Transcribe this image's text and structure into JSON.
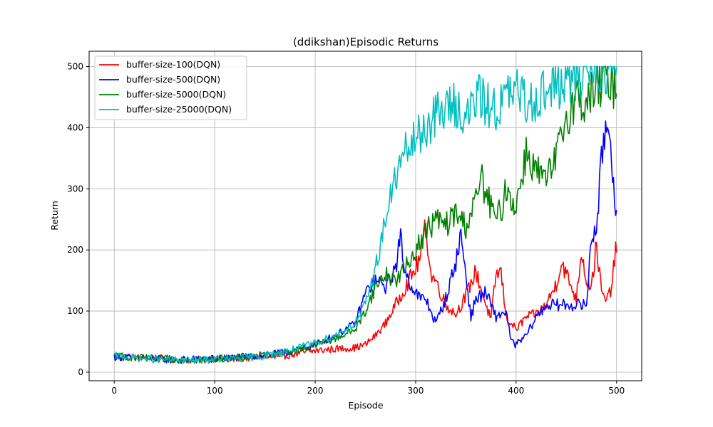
{
  "chart_data": {
    "type": "line",
    "title": "(ddikshan)Episodic Returns",
    "xlabel": "Episode",
    "ylabel": "Return",
    "xlim": [
      -25,
      525
    ],
    "ylim": [
      -14,
      525
    ],
    "xticks": [
      0,
      100,
      200,
      300,
      400,
      500
    ],
    "yticks": [
      0,
      100,
      200,
      300,
      400,
      500
    ],
    "grid": true,
    "legend_position": "top-left",
    "series": [
      {
        "name": "buffer-size-100(DQN)",
        "color": "#ff0000",
        "points": [
          [
            0,
            28
          ],
          [
            20,
            24
          ],
          [
            40,
            23
          ],
          [
            60,
            21
          ],
          [
            80,
            20
          ],
          [
            100,
            22
          ],
          [
            120,
            21
          ],
          [
            140,
            25
          ],
          [
            160,
            24
          ],
          [
            180,
            30
          ],
          [
            200,
            35
          ],
          [
            220,
            38
          ],
          [
            240,
            40
          ],
          [
            250,
            45
          ],
          [
            260,
            60
          ],
          [
            270,
            80
          ],
          [
            280,
            110
          ],
          [
            290,
            140
          ],
          [
            300,
            170
          ],
          [
            305,
            190
          ],
          [
            310,
            240
          ],
          [
            315,
            160
          ],
          [
            320,
            150
          ],
          [
            330,
            110
          ],
          [
            340,
            95
          ],
          [
            350,
            125
          ],
          [
            360,
            165
          ],
          [
            370,
            110
          ],
          [
            375,
            85
          ],
          [
            380,
            160
          ],
          [
            385,
            165
          ],
          [
            390,
            90
          ],
          [
            400,
            70
          ],
          [
            410,
            90
          ],
          [
            420,
            95
          ],
          [
            430,
            110
          ],
          [
            440,
            145
          ],
          [
            445,
            180
          ],
          [
            450,
            160
          ],
          [
            460,
            120
          ],
          [
            465,
            200
          ],
          [
            470,
            150
          ],
          [
            475,
            140
          ],
          [
            480,
            210
          ],
          [
            485,
            130
          ],
          [
            490,
            115
          ],
          [
            495,
            140
          ],
          [
            500,
            210
          ]
        ]
      },
      {
        "name": "buffer-size-500(DQN)",
        "color": "#0000ff",
        "points": [
          [
            0,
            25
          ],
          [
            20,
            24
          ],
          [
            40,
            22
          ],
          [
            60,
            20
          ],
          [
            80,
            21
          ],
          [
            100,
            22
          ],
          [
            120,
            24
          ],
          [
            140,
            26
          ],
          [
            160,
            30
          ],
          [
            180,
            35
          ],
          [
            200,
            45
          ],
          [
            220,
            60
          ],
          [
            240,
            80
          ],
          [
            250,
            130
          ],
          [
            260,
            150
          ],
          [
            270,
            140
          ],
          [
            280,
            170
          ],
          [
            285,
            220
          ],
          [
            290,
            160
          ],
          [
            300,
            130
          ],
          [
            305,
            120
          ],
          [
            310,
            120
          ],
          [
            320,
            80
          ],
          [
            330,
            120
          ],
          [
            340,
            180
          ],
          [
            345,
            225
          ],
          [
            350,
            160
          ],
          [
            355,
            90
          ],
          [
            360,
            120
          ],
          [
            370,
            130
          ],
          [
            380,
            90
          ],
          [
            390,
            100
          ],
          [
            395,
            50
          ],
          [
            400,
            45
          ],
          [
            410,
            60
          ],
          [
            420,
            90
          ],
          [
            430,
            110
          ],
          [
            440,
            110
          ],
          [
            450,
            110
          ],
          [
            460,
            110
          ],
          [
            470,
            110
          ],
          [
            475,
            220
          ],
          [
            480,
            240
          ],
          [
            485,
            340
          ],
          [
            490,
            420
          ],
          [
            495,
            360
          ],
          [
            500,
            255
          ]
        ]
      },
      {
        "name": "buffer-size-5000(DQN)",
        "color": "#008000",
        "points": [
          [
            0,
            27
          ],
          [
            20,
            24
          ],
          [
            40,
            22
          ],
          [
            60,
            21
          ],
          [
            80,
            20
          ],
          [
            100,
            22
          ],
          [
            120,
            23
          ],
          [
            140,
            27
          ],
          [
            160,
            30
          ],
          [
            180,
            35
          ],
          [
            200,
            45
          ],
          [
            220,
            55
          ],
          [
            240,
            70
          ],
          [
            250,
            100
          ],
          [
            260,
            140
          ],
          [
            270,
            160
          ],
          [
            280,
            150
          ],
          [
            290,
            170
          ],
          [
            300,
            200
          ],
          [
            310,
            230
          ],
          [
            320,
            250
          ],
          [
            330,
            240
          ],
          [
            340,
            260
          ],
          [
            350,
            240
          ],
          [
            360,
            280
          ],
          [
            365,
            320
          ],
          [
            370,
            290
          ],
          [
            380,
            250
          ],
          [
            385,
            265
          ],
          [
            390,
            300
          ],
          [
            400,
            270
          ],
          [
            410,
            360
          ],
          [
            420,
            330
          ],
          [
            430,
            310
          ],
          [
            440,
            350
          ],
          [
            450,
            420
          ],
          [
            460,
            450
          ],
          [
            470,
            440
          ],
          [
            480,
            470
          ],
          [
            490,
            480
          ],
          [
            500,
            470
          ]
        ]
      },
      {
        "name": "buffer-size-25000(DQN)",
        "color": "#00bfbf",
        "points": [
          [
            0,
            27
          ],
          [
            20,
            24
          ],
          [
            40,
            21
          ],
          [
            60,
            20
          ],
          [
            80,
            20
          ],
          [
            100,
            21
          ],
          [
            120,
            22
          ],
          [
            140,
            25
          ],
          [
            160,
            30
          ],
          [
            180,
            38
          ],
          [
            200,
            48
          ],
          [
            220,
            60
          ],
          [
            240,
            80
          ],
          [
            250,
            110
          ],
          [
            260,
            170
          ],
          [
            270,
            250
          ],
          [
            280,
            320
          ],
          [
            290,
            360
          ],
          [
            300,
            380
          ],
          [
            310,
            400
          ],
          [
            320,
            420
          ],
          [
            330,
            430
          ],
          [
            340,
            440
          ],
          [
            350,
            410
          ],
          [
            360,
            450
          ],
          [
            370,
            440
          ],
          [
            380,
            430
          ],
          [
            390,
            450
          ],
          [
            400,
            460
          ],
          [
            410,
            440
          ],
          [
            420,
            450
          ],
          [
            430,
            460
          ],
          [
            440,
            470
          ],
          [
            450,
            470
          ],
          [
            460,
            480
          ],
          [
            470,
            500
          ],
          [
            480,
            500
          ],
          [
            490,
            500
          ],
          [
            500,
            500
          ]
        ]
      }
    ]
  }
}
